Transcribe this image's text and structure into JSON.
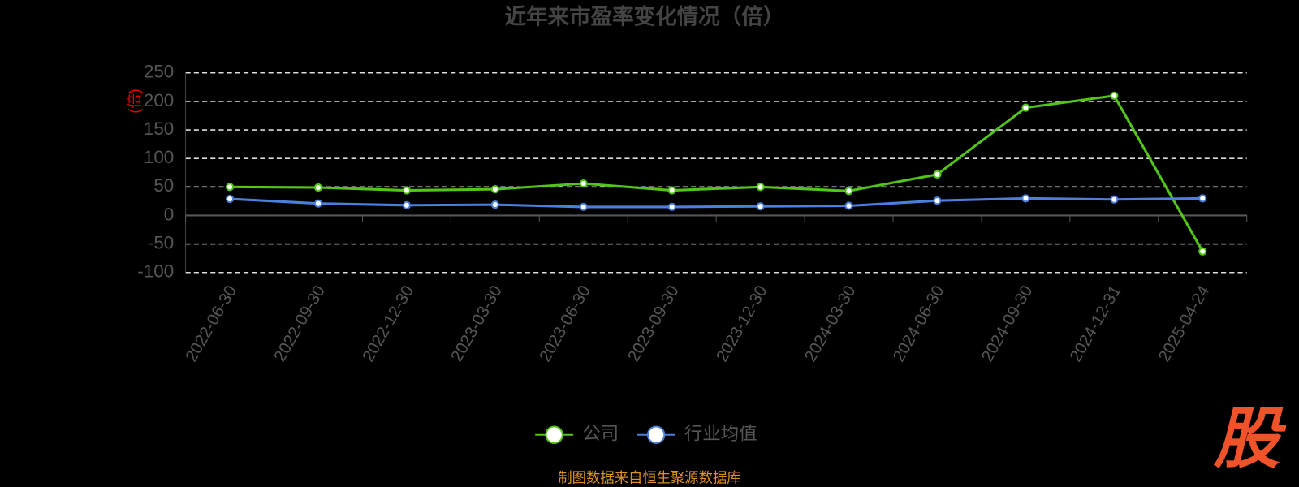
{
  "chart_data": {
    "type": "line",
    "title": "近年来市盈率变化情况（倍）",
    "y_label": "(倍)",
    "categories": [
      "2022-06-30",
      "2022-09-30",
      "2022-12-30",
      "2023-03-30",
      "2023-06-30",
      "2023-09-30",
      "2023-12-30",
      "2024-03-30",
      "2024-06-30",
      "2024-09-30",
      "2024-12-31",
      "2025-04-24"
    ],
    "series": [
      {
        "name": "公司",
        "color": "#52c41a",
        "values": [
          50,
          49,
          44,
          46,
          56,
          44,
          50,
          43,
          72,
          189,
          210,
          -63
        ]
      },
      {
        "name": "行业均值",
        "color": "#4a7fdc",
        "values": [
          29,
          21,
          18,
          19,
          15,
          15,
          16,
          17,
          26,
          30,
          28,
          30
        ]
      }
    ],
    "ylim": [
      -100,
      250
    ],
    "yticks": [
      -100,
      -50,
      0,
      50,
      100,
      150,
      200,
      250
    ],
    "grid": true,
    "source": "制图数据来自恒生聚源数据库",
    "logo": "股"
  }
}
